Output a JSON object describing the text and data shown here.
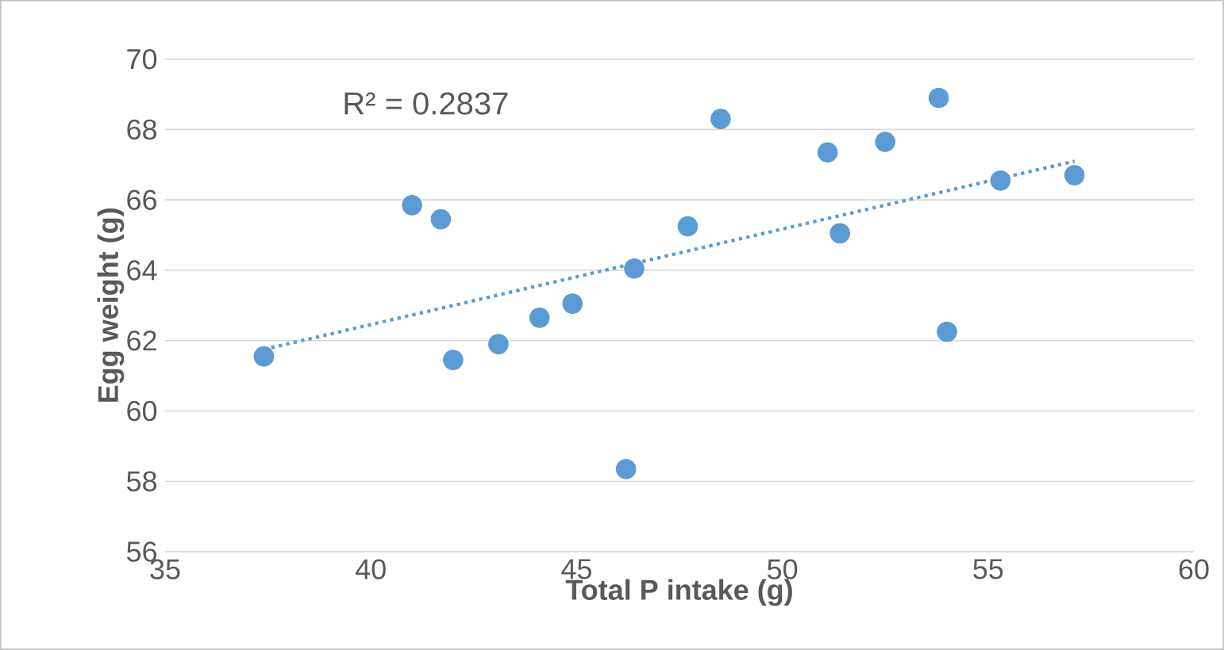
{
  "chart_data": {
    "type": "scatter",
    "xlabel": "Total P intake (g)",
    "ylabel": "Egg weight (g)",
    "xlim": [
      35,
      60
    ],
    "ylim": [
      56,
      70
    ],
    "xticks": [
      35,
      40,
      45,
      50,
      55,
      60
    ],
    "yticks": [
      56,
      58,
      60,
      62,
      64,
      66,
      68,
      70
    ],
    "grid": "y",
    "annotations": [
      "R² = 0.2837"
    ],
    "series": [
      {
        "marker": "circle",
        "color": "#5b9bd5",
        "x": [
          37.4,
          41.0,
          41.7,
          42.0,
          43.1,
          44.1,
          44.9,
          46.2,
          46.4,
          47.7,
          48.5,
          51.1,
          51.4,
          52.5,
          53.8,
          54.0,
          55.3,
          57.1
        ],
        "values": [
          61.55,
          65.85,
          65.45,
          61.45,
          61.9,
          62.65,
          63.05,
          58.35,
          64.05,
          65.25,
          68.3,
          67.35,
          65.05,
          67.65,
          68.9,
          62.25,
          66.55,
          66.7
        ]
      },
      {
        "type": "line",
        "marker": "none",
        "line_style": "dotted",
        "color": "#5b9bd5",
        "x": [
          37.4,
          57.1
        ],
        "values": [
          61.75,
          67.1
        ]
      }
    ]
  }
}
